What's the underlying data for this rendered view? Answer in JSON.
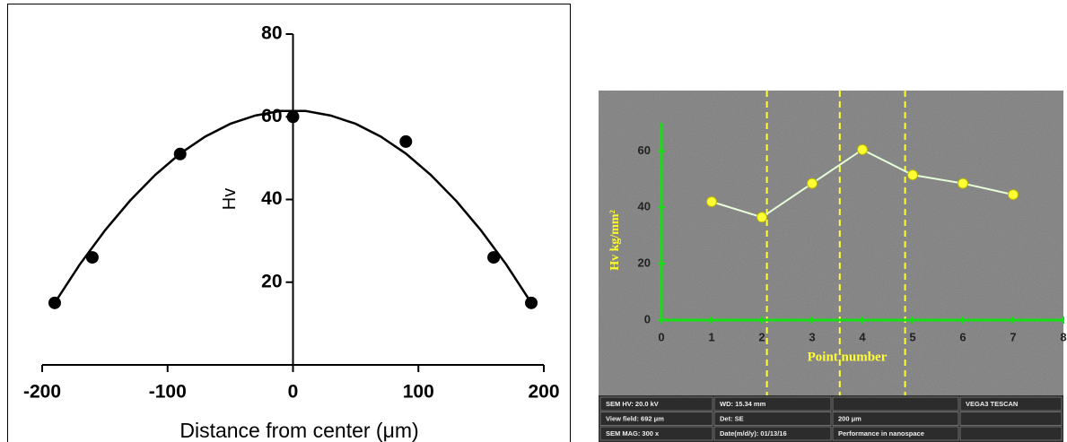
{
  "chart_data": [
    {
      "type": "scatter",
      "y_label": "Hv",
      "x_label": "Distance from center (μm)",
      "xlim": [
        -200,
        200
      ],
      "xticks": [
        -200,
        -100,
        0,
        100,
        200
      ],
      "ylim": [
        0,
        80
      ],
      "yticks": [
        20,
        40,
        60,
        80
      ],
      "series": [
        {
          "mode": "markers",
          "color": "#000000",
          "x": [
            -190,
            -160,
            -90,
            0,
            90,
            160,
            190
          ],
          "values": [
            15,
            26,
            51,
            60,
            54,
            26,
            15
          ]
        },
        {
          "mode": "line",
          "color": "#000000",
          "x": [
            -190,
            -170,
            -150,
            -130,
            -110,
            -90,
            -70,
            -50,
            -30,
            -10,
            10,
            30,
            50,
            70,
            90,
            110,
            130,
            150,
            170,
            190
          ],
          "values": [
            15.0,
            24.3,
            32.5,
            39.7,
            45.9,
            51.1,
            55.2,
            58.3,
            60.3,
            61.4,
            61.4,
            60.3,
            58.3,
            55.2,
            51.1,
            45.9,
            39.7,
            32.5,
            24.3,
            15.0
          ]
        }
      ]
    },
    {
      "type": "line",
      "y_label": "Hv kg/mm²",
      "x_label": "Point number",
      "xlim": [
        0,
        8
      ],
      "xticks": [
        0,
        1,
        2,
        3,
        4,
        5,
        6,
        7,
        8
      ],
      "ylim": [
        0,
        70
      ],
      "yticks": [
        0,
        20,
        40,
        60
      ],
      "vlines": [
        2.1,
        3.55,
        4.85
      ],
      "series": [
        {
          "color": "#ffff33",
          "line_color": "#e6ffd9",
          "x": [
            1,
            2,
            3,
            4,
            5,
            6,
            7
          ],
          "values": [
            42,
            36.5,
            48.5,
            60.5,
            51.5,
            48.5,
            44.5
          ]
        }
      ],
      "info_bar": [
        [
          "SEM HV: 20.0 kV",
          "WD: 15.34 mm",
          "",
          "VEGA3 TESCAN"
        ],
        [
          "View field: 692 μm",
          "Det: SE",
          "200 μm",
          ""
        ],
        [
          "SEM MAG: 300 x",
          "Date(m/d/y): 01/13/16",
          "Performance in nanospace",
          ""
        ]
      ]
    }
  ]
}
